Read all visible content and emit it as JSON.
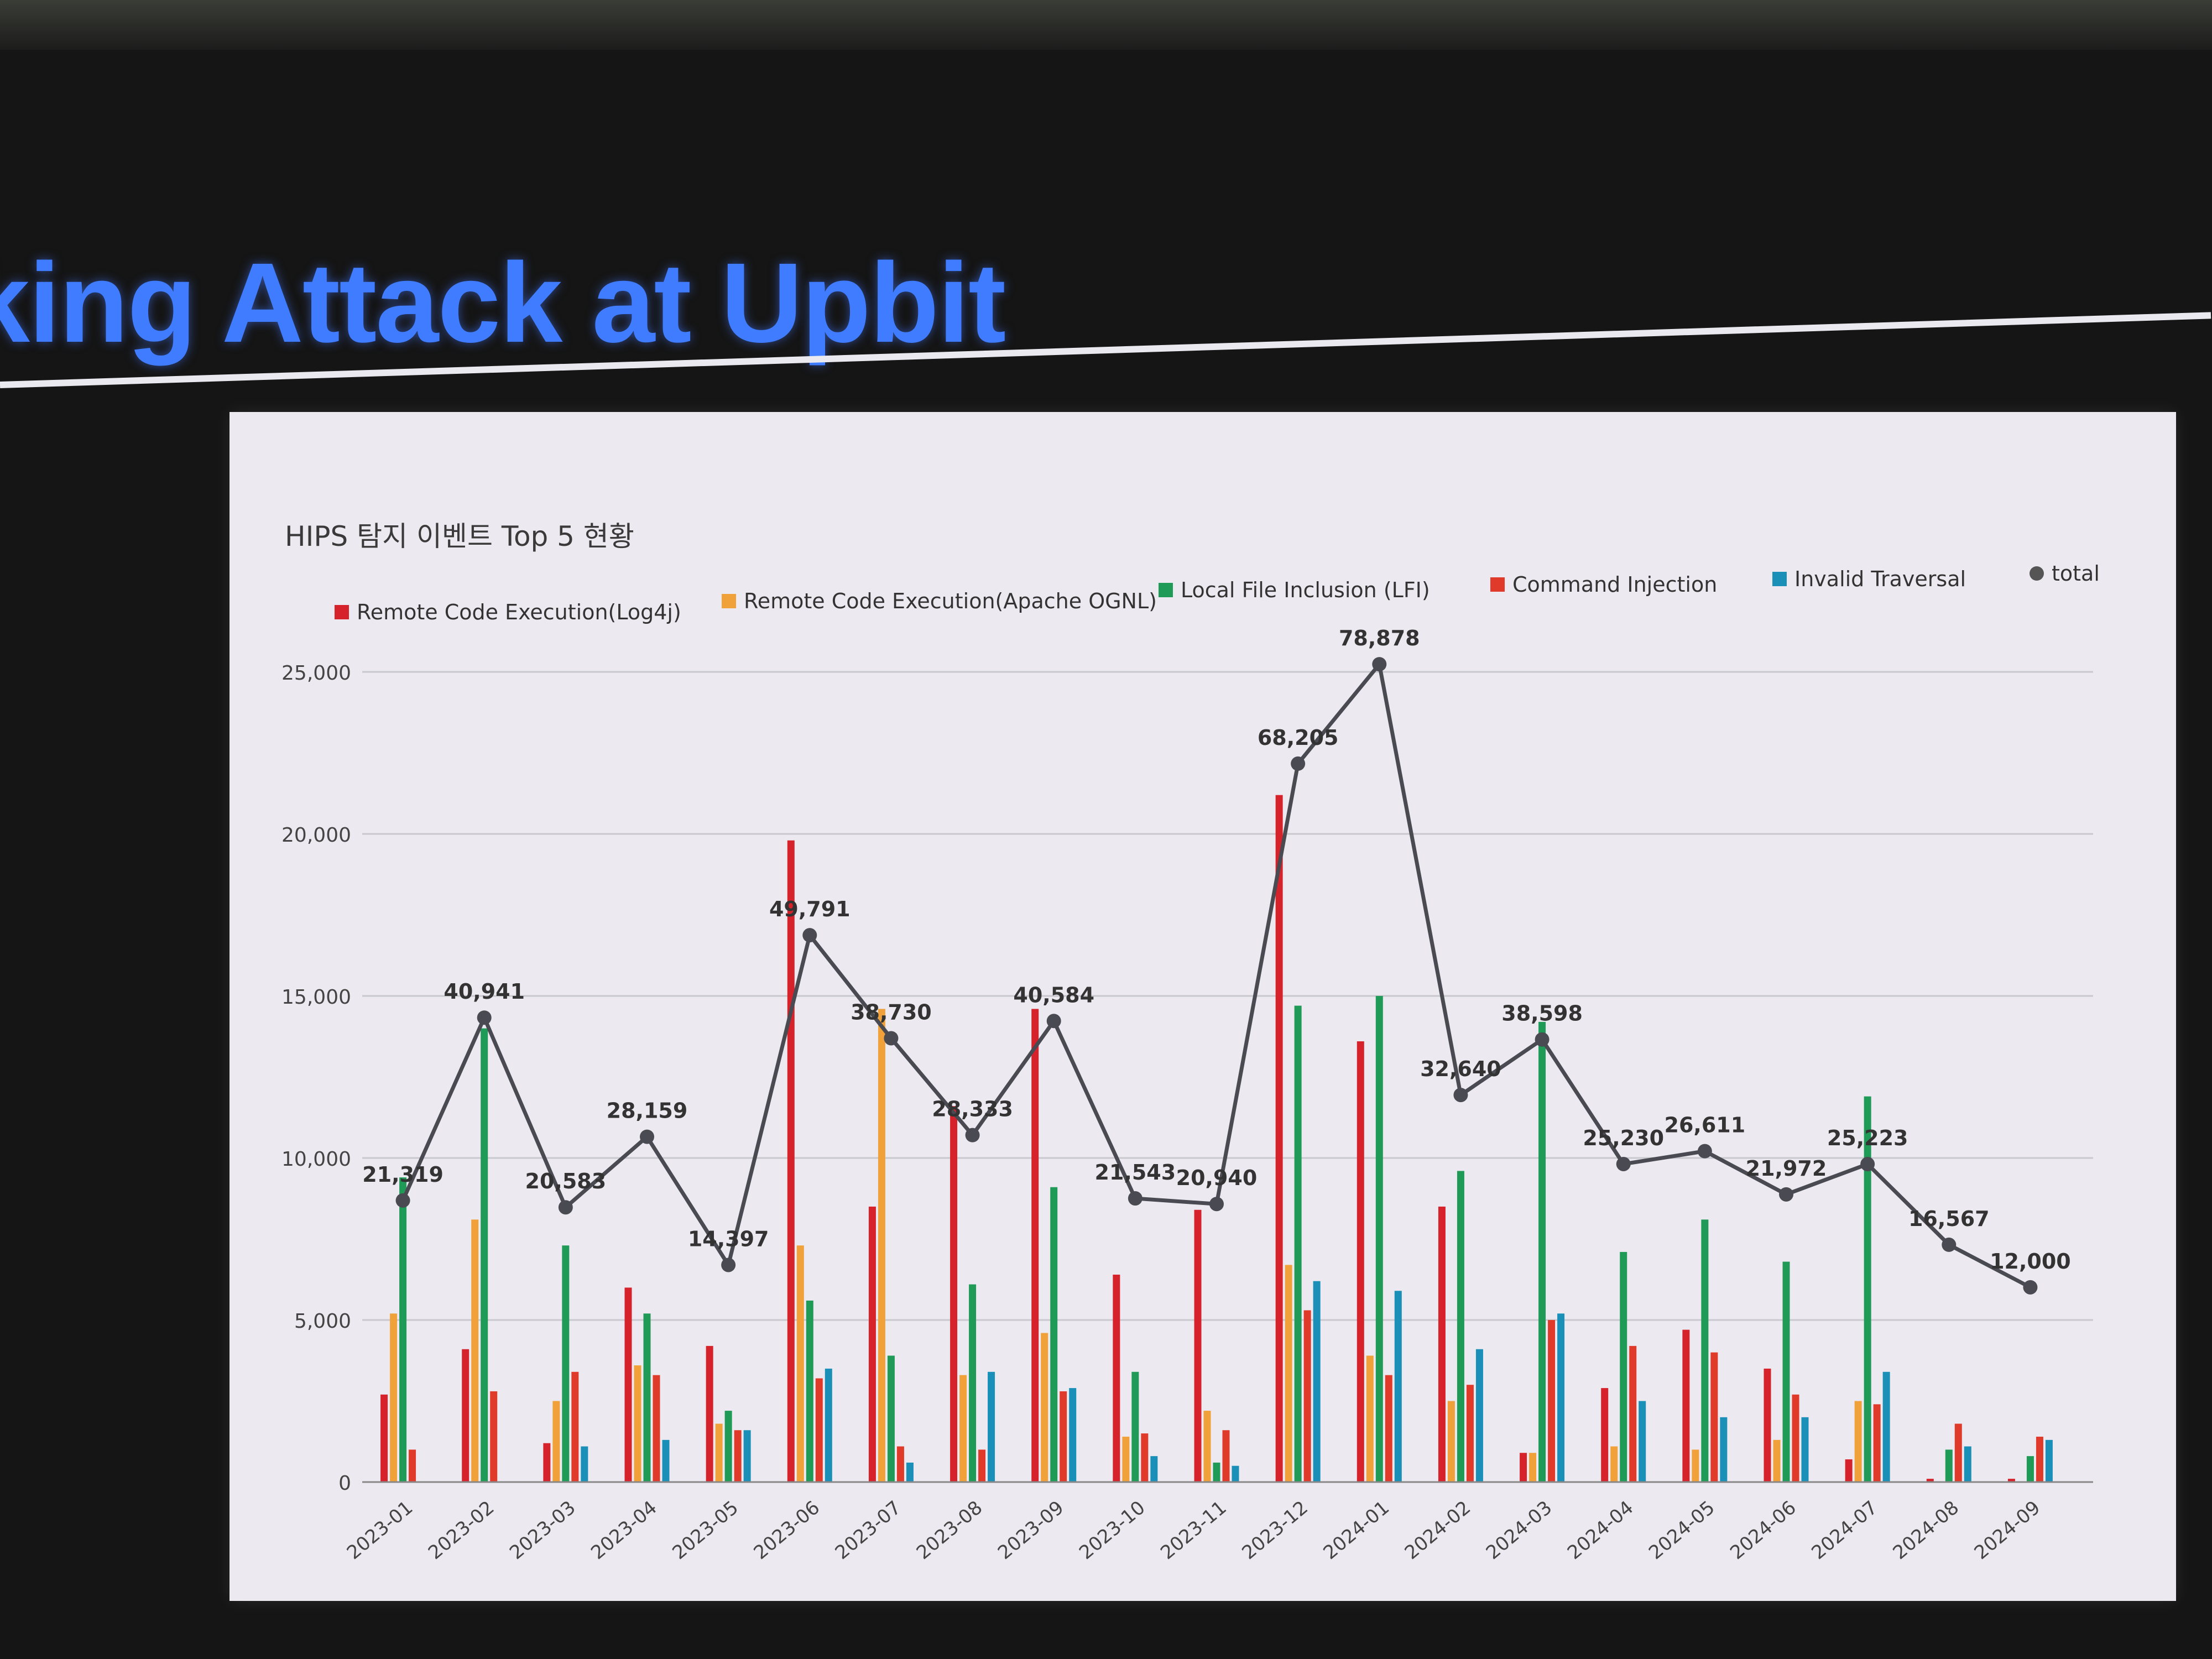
{
  "slide": {
    "title": "king Attack at Upbit"
  },
  "chart_data": {
    "type": "bar",
    "title": "HIPS 탐지 이벤트 Top 5 현황",
    "categories": [
      "2023-01",
      "2023-02",
      "2023-03",
      "2023-04",
      "2023-05",
      "2023-06",
      "2023-07",
      "2023-08",
      "2023-09",
      "2023-10",
      "2023-11",
      "2023-12",
      "2024-01",
      "2024-02",
      "2024-03",
      "2024-04",
      "2024-05",
      "2024-06",
      "2024-07",
      "2024-08",
      "2024-09"
    ],
    "ylim": [
      0,
      25000
    ],
    "yticks": [
      0,
      5000,
      10000,
      15000,
      20000,
      25000
    ],
    "ytick_labels": [
      "0",
      "5,000",
      "10,000",
      "15,000",
      "20,000",
      "25,000"
    ],
    "grid": true,
    "legend_position": "top",
    "series": [
      {
        "name": "Remote Code Execution(Log4j)",
        "color": "#d6232b",
        "values": [
          2700,
          4100,
          1200,
          6000,
          4200,
          19800,
          8500,
          11600,
          14600,
          6400,
          8400,
          21200,
          13600,
          8500,
          900,
          2900,
          4700,
          3500,
          700,
          100,
          100
        ]
      },
      {
        "name": "Remote Code Execution(Apache OGNL)",
        "color": "#f0a13a",
        "values": [
          5200,
          8100,
          2500,
          3600,
          1800,
          7300,
          14600,
          3300,
          4600,
          1400,
          2200,
          6700,
          3900,
          2500,
          900,
          1100,
          1000,
          1300,
          2500,
          0,
          0
        ]
      },
      {
        "name": "Local File Inclusion (LFI)",
        "color": "#1f9a57",
        "values": [
          9400,
          14000,
          7300,
          5200,
          2200,
          5600,
          3900,
          6100,
          9100,
          3400,
          600,
          14700,
          15000,
          9600,
          14200,
          7100,
          8100,
          6800,
          11900,
          1000,
          800
        ]
      },
      {
        "name": "Command Injection",
        "color": "#e03a2a",
        "values": [
          1000,
          2800,
          3400,
          3300,
          1600,
          3200,
          1100,
          1000,
          2800,
          1500,
          1600,
          5300,
          3300,
          3000,
          5000,
          4200,
          4000,
          2700,
          2400,
          1800,
          1400
        ]
      },
      {
        "name": "Invalid Traversal",
        "color": "#1a8fb8",
        "values": [
          0,
          0,
          1100,
          1300,
          1600,
          3500,
          600,
          3400,
          2900,
          800,
          500,
          6200,
          5900,
          4100,
          5200,
          2500,
          2000,
          2000,
          3400,
          1100,
          1300
        ]
      }
    ],
    "total": {
      "name": "total",
      "color": "#4a4a52",
      "values": [
        21319,
        40941,
        20583,
        28159,
        14397,
        49791,
        38730,
        28333,
        40584,
        21543,
        20940,
        68205,
        78878,
        32640,
        38598,
        25230,
        26611,
        21972,
        25223,
        16567,
        12000
      ],
      "labels": [
        "21,319",
        "40,941",
        "20,583",
        "28,159",
        "14,397",
        "49,791",
        "38,730",
        "28,333",
        "40,584",
        "21,543",
        "20,940",
        "68,205",
        "78,878",
        "32,640",
        "38,598",
        "25,230",
        "26,611",
        "21,972",
        "25,223",
        "16,567",
        "12,000"
      ]
    }
  }
}
